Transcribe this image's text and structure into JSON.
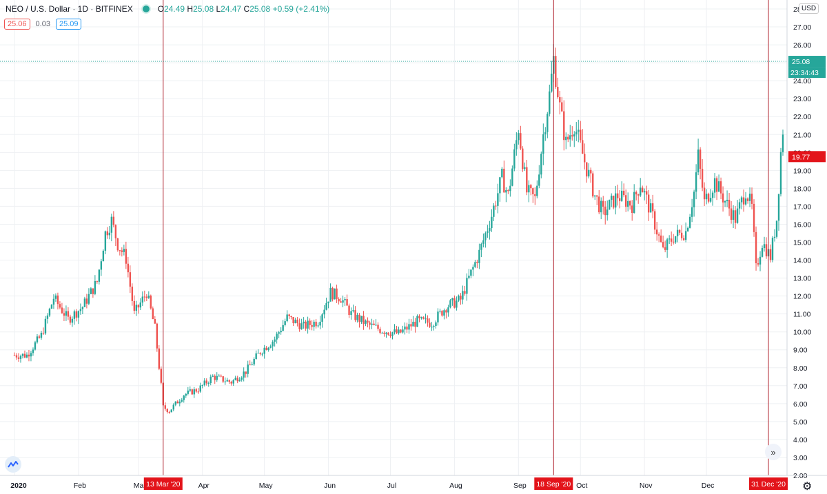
{
  "header": {
    "symbol_title": "NEO / U.S. Dollar · 1D · BITFINEX",
    "ohlc_open_label": "O",
    "ohlc_open": "24.49",
    "ohlc_high_label": "H",
    "ohlc_high": "25.08",
    "ohlc_low_label": "L",
    "ohlc_low": "24.47",
    "ohlc_close_label": "C",
    "ohlc_close": "25.08",
    "ohlc_change": "+0.59 (+2.41%)",
    "bid_price": "25.06",
    "spread": "0.03",
    "ask_price": "25.09"
  },
  "price_axis": {
    "currency": "USD",
    "last_price_label": "25.08",
    "countdown_label": "23:34:43",
    "crosshair_price_label": "19.77"
  },
  "colors": {
    "up": "#26a69a",
    "down": "#ef5350",
    "grid": "#eef0f3",
    "marker_line": "#b22833",
    "marker_bg": "#e3141a"
  },
  "icons": {
    "logo": "tradingview-logo-icon",
    "scroll": "double-chevron-right-icon",
    "settings": "gear-icon"
  },
  "chart_data": {
    "type": "candlestick",
    "ylim": [
      2,
      28.5
    ],
    "y_ticks": [
      "2.00",
      "3.00",
      "4.00",
      "5.00",
      "6.00",
      "7.00",
      "8.00",
      "9.00",
      "10.00",
      "11.00",
      "12.00",
      "13.00",
      "14.00",
      "15.00",
      "16.00",
      "17.00",
      "18.00",
      "19.00",
      "20.00",
      "21.00",
      "22.00",
      "23.00",
      "24.00",
      "25.00",
      "26.00",
      "27.00",
      "28.00"
    ],
    "x_labels": [
      "2020",
      "Feb",
      "Mar",
      "Apr",
      "May",
      "Jun",
      "Jul",
      "Aug",
      "Sep",
      "Oct",
      "Nov",
      "Dec"
    ],
    "date_markers": [
      {
        "label": "13 Mar '20",
        "value": 5.8
      },
      {
        "label": "18 Sep '20",
        "value": 25.2
      },
      {
        "label": "31 Dec '20",
        "value": 14.1
      }
    ],
    "last_price": 25.08,
    "crosshair_price": 19.77,
    "close_path": [
      [
        "2020-01-01",
        8.7
      ],
      [
        "2020-01-07",
        8.7
      ],
      [
        "2020-01-14",
        9.8
      ],
      [
        "2020-01-20",
        11.9
      ],
      [
        "2020-01-27",
        10.7
      ],
      [
        "2020-02-03",
        11.4
      ],
      [
        "2020-02-10",
        12.8
      ],
      [
        "2020-02-14",
        15.5
      ],
      [
        "2020-02-17",
        16.2
      ],
      [
        "2020-02-20",
        14.9
      ],
      [
        "2020-02-24",
        14.1
      ],
      [
        "2020-02-28",
        11.0
      ],
      [
        "2020-03-05",
        12.2
      ],
      [
        "2020-03-09",
        10.2
      ],
      [
        "2020-03-12",
        7.0
      ],
      [
        "2020-03-13",
        5.8
      ],
      [
        "2020-03-16",
        5.6
      ],
      [
        "2020-03-23",
        6.5
      ],
      [
        "2020-03-30",
        6.8
      ],
      [
        "2020-04-06",
        7.5
      ],
      [
        "2020-04-15",
        7.2
      ],
      [
        "2020-04-22",
        7.8
      ],
      [
        "2020-04-29",
        8.9
      ],
      [
        "2020-05-06",
        9.6
      ],
      [
        "2020-05-12",
        10.8
      ],
      [
        "2020-05-20",
        10.3
      ],
      [
        "2020-05-27",
        10.6
      ],
      [
        "2020-06-02",
        12.2
      ],
      [
        "2020-06-07",
        11.9
      ],
      [
        "2020-06-12",
        11.0
      ],
      [
        "2020-06-20",
        10.4
      ],
      [
        "2020-06-27",
        10.1
      ],
      [
        "2020-07-05",
        9.9
      ],
      [
        "2020-07-14",
        10.6
      ],
      [
        "2020-07-21",
        10.5
      ],
      [
        "2020-07-28",
        11.4
      ],
      [
        "2020-08-04",
        11.8
      ],
      [
        "2020-08-08",
        13.0
      ],
      [
        "2020-08-13",
        14.4
      ],
      [
        "2020-08-19",
        16.5
      ],
      [
        "2020-08-24",
        18.6
      ],
      [
        "2020-08-27",
        17.6
      ],
      [
        "2020-09-01",
        21.4
      ],
      [
        "2020-09-05",
        17.8
      ],
      [
        "2020-09-09",
        17.4
      ],
      [
        "2020-09-13",
        21.0
      ],
      [
        "2020-09-16",
        23.2
      ],
      [
        "2020-09-18",
        25.2
      ],
      [
        "2020-09-21",
        22.5
      ],
      [
        "2020-09-24",
        20.5
      ],
      [
        "2020-09-28",
        21.6
      ],
      [
        "2020-10-03",
        19.5
      ],
      [
        "2020-10-08",
        17.6
      ],
      [
        "2020-10-12",
        16.6
      ],
      [
        "2020-10-19",
        17.6
      ],
      [
        "2020-10-26",
        17.1
      ],
      [
        "2020-10-30",
        18.3
      ],
      [
        "2020-11-05",
        16.4
      ],
      [
        "2020-11-10",
        14.5
      ],
      [
        "2020-11-15",
        15.3
      ],
      [
        "2020-11-21",
        15.6
      ],
      [
        "2020-11-25",
        17.8
      ],
      [
        "2020-11-27",
        19.8
      ],
      [
        "2020-11-30",
        17.2
      ],
      [
        "2020-12-05",
        18.4
      ],
      [
        "2020-12-10",
        17.3
      ],
      [
        "2020-12-15",
        16.3
      ],
      [
        "2020-12-20",
        17.9
      ],
      [
        "2020-12-23",
        16.9
      ],
      [
        "2020-12-25",
        13.5
      ],
      [
        "2020-12-28",
        15.0
      ],
      [
        "2021-01-01",
        14.2
      ],
      [
        "2021-01-04",
        16.3
      ],
      [
        "2021-01-06",
        20.0
      ],
      [
        "2021-01-07",
        21.3
      ]
    ]
  }
}
